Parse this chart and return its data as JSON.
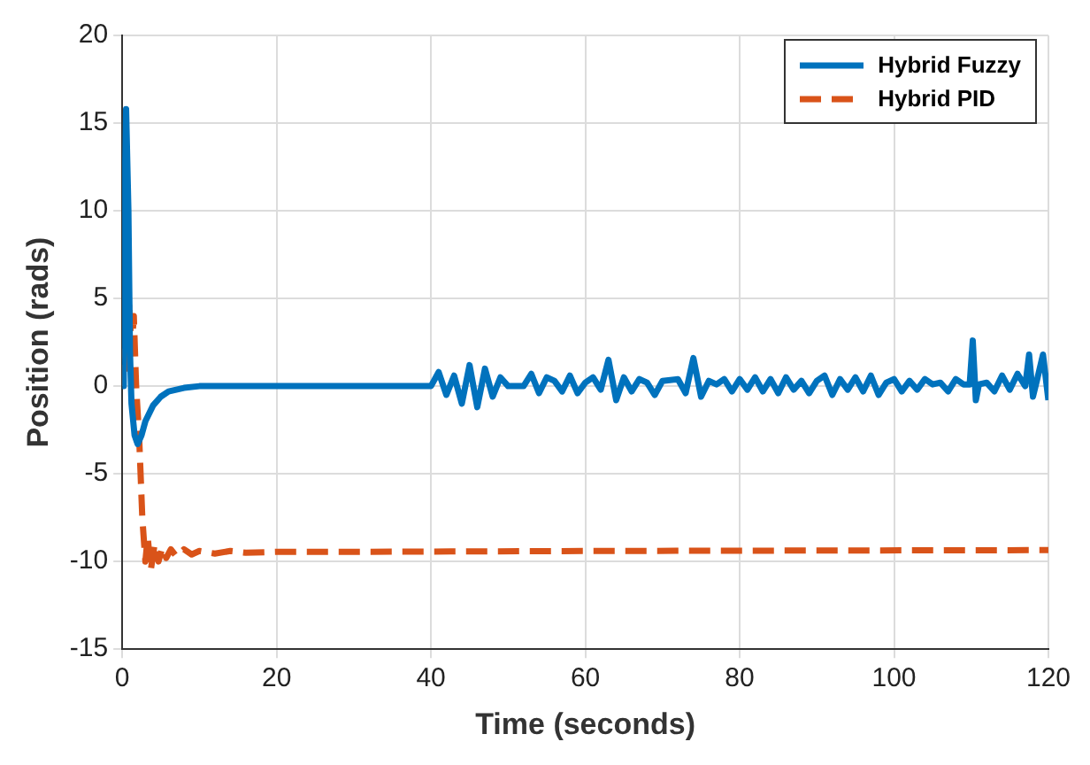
{
  "chart_data": {
    "type": "line",
    "xlabel": "Time (seconds)",
    "ylabel": "Position (rads)",
    "xlim": [
      0,
      120
    ],
    "xticks": [
      0,
      20,
      40,
      60,
      80,
      100,
      120
    ],
    "ylim": [
      -15,
      20
    ],
    "yticks": [
      -15,
      -10,
      -5,
      0,
      5,
      10,
      15,
      20
    ],
    "grid": true,
    "legend": "top right",
    "marker": "none",
    "series": [
      {
        "name": "Hybrid Fuzzy",
        "color": "#0072bd",
        "line_style": "solid",
        "x": [
          0,
          0.2,
          0.5,
          0.8,
          1,
          1.2,
          1.6,
          2,
          2.5,
          3,
          4,
          5,
          6,
          8,
          10,
          40,
          41,
          42,
          43,
          44,
          45,
          46,
          47,
          48,
          49,
          50,
          52,
          53,
          54,
          55,
          56,
          57,
          58,
          59,
          60,
          61,
          62,
          63,
          64,
          65,
          66,
          67,
          68,
          69,
          70,
          72,
          73,
          74,
          75,
          76,
          77,
          78,
          79,
          80,
          81,
          82,
          83,
          84,
          85,
          86,
          87,
          88,
          89,
          90,
          91,
          92,
          93,
          94,
          95,
          96,
          97,
          98,
          99,
          100,
          101,
          102,
          103,
          104,
          105,
          106,
          107,
          108,
          109,
          109.8,
          110.2,
          110.6,
          111,
          112,
          113,
          114,
          115,
          116,
          117,
          117.5,
          118,
          118.5,
          119.3,
          120
        ],
        "values": [
          0,
          8,
          15.8,
          10,
          2,
          -1,
          -2.8,
          -3.3,
          -2.8,
          -2,
          -1.1,
          -0.6,
          -0.3,
          -0.1,
          0,
          0,
          0.8,
          -0.5,
          0.6,
          -1,
          1.2,
          -1.2,
          1,
          -0.6,
          0.5,
          0,
          0,
          0.7,
          -0.4,
          0.5,
          0.3,
          -0.3,
          0.6,
          -0.4,
          0.2,
          0.5,
          -0.2,
          1.5,
          -0.8,
          0.5,
          -0.3,
          0.4,
          0.2,
          -0.5,
          0.3,
          0.4,
          -0.4,
          1.6,
          -0.6,
          0.3,
          0.1,
          0.4,
          -0.3,
          0.4,
          -0.2,
          0.5,
          -0.3,
          0.4,
          -0.4,
          0.5,
          -0.2,
          0.3,
          -0.4,
          0.3,
          0.6,
          -0.5,
          0.4,
          -0.2,
          0.5,
          -0.3,
          0.6,
          -0.5,
          0.2,
          0.4,
          -0.3,
          0.3,
          -0.2,
          0.4,
          0.1,
          0.2,
          -0.3,
          0.4,
          0.1,
          0.1,
          2.6,
          -0.8,
          0.1,
          0.2,
          -0.3,
          0.6,
          -0.2,
          0.7,
          0,
          1.8,
          -0.6,
          0.3,
          1.8,
          -0.8
        ]
      },
      {
        "name": "Hybrid PID",
        "color": "#d95319",
        "line_style": "dashed",
        "x": [
          0,
          0.3,
          0.6,
          0.9,
          1.2,
          1.5,
          1.8,
          2.2,
          2.6,
          3,
          3.3,
          3.7,
          4.2,
          4.7,
          5.2,
          5.7,
          6.3,
          7,
          8,
          9,
          10,
          12,
          14,
          16,
          20,
          30,
          60,
          120
        ],
        "values": [
          0,
          2,
          1,
          4.8,
          2,
          4,
          0,
          -3,
          -7.5,
          -10,
          -8.6,
          -10.5,
          -9,
          -10,
          -9.2,
          -9.8,
          -9.3,
          -9.7,
          -9.3,
          -9.6,
          -9.4,
          -9.55,
          -9.4,
          -9.5,
          -9.45,
          -9.45,
          -9.4,
          -9.35
        ]
      }
    ]
  }
}
